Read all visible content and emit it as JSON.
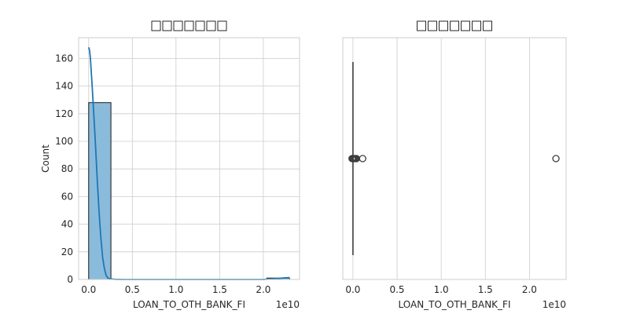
{
  "chart_data": [
    {
      "type": "histogram",
      "title": "",
      "title_glyph_count": 7,
      "xlabel": "LOAN_TO_OTH_BANK_FI",
      "ylabel": "Count",
      "x_offset_text": "1e10",
      "xlim": [
        -0.115,
        2.415
      ],
      "ylim": [
        0,
        175
      ],
      "xticks": [
        0.0,
        0.5,
        1.0,
        1.5,
        2.0
      ],
      "xtick_labels": [
        "0.0",
        "0.5",
        "1.0",
        "1.5",
        "2.0"
      ],
      "yticks": [
        0,
        20,
        40,
        60,
        80,
        100,
        120,
        140,
        160
      ],
      "ytick_labels": [
        "0",
        "20",
        "40",
        "60",
        "80",
        "100",
        "120",
        "140",
        "160"
      ],
      "bins": [
        {
          "x0": 0.0,
          "x1": 0.255,
          "count": 128
        },
        {
          "x0": 0.255,
          "x1": 0.51,
          "count": 0
        },
        {
          "x0": 0.51,
          "x1": 0.765,
          "count": 0
        },
        {
          "x0": 0.765,
          "x1": 1.02,
          "count": 0
        },
        {
          "x0": 1.02,
          "x1": 1.275,
          "count": 0
        },
        {
          "x0": 1.275,
          "x1": 1.53,
          "count": 0
        },
        {
          "x0": 1.53,
          "x1": 1.785,
          "count": 0
        },
        {
          "x0": 1.785,
          "x1": 2.04,
          "count": 0
        },
        {
          "x0": 2.04,
          "x1": 2.3,
          "count": 1
        }
      ],
      "kde": {
        "x": [
          0.0,
          0.01,
          0.02,
          0.04,
          0.06,
          0.08,
          0.1,
          0.12,
          0.14,
          0.16,
          0.18,
          0.2,
          0.22,
          0.25,
          0.3,
          0.4,
          0.6,
          1.0,
          1.5,
          2.0,
          2.15,
          2.25,
          2.3
        ],
        "y": [
          168,
          166,
          160,
          140,
          118,
          95,
          70,
          48,
          30,
          16,
          8,
          3,
          1,
          0.4,
          0.1,
          0,
          0,
          0,
          0,
          0,
          0.6,
          1.2,
          1.3
        ]
      },
      "grid": true,
      "colors": {
        "bar_fill": "#8bbbdb",
        "bar_edge": "#1a1a1a",
        "kde": "#1f77b4"
      }
    },
    {
      "type": "boxplot",
      "title": "",
      "title_glyph_count": 7,
      "xlabel": "LOAN_TO_OTH_BANK_FI",
      "x_offset_text": "1e10",
      "xlim": [
        -0.115,
        2.415
      ],
      "xticks": [
        0.0,
        0.5,
        1.0,
        1.5,
        2.0
      ],
      "xtick_labels": [
        "0.0",
        "0.5",
        "1.0",
        "1.5",
        "2.0"
      ],
      "box": {
        "q1": 0.0,
        "median": 0.0,
        "q3": 0.0,
        "whisker_low": 0.0,
        "whisker_high": 0.0
      },
      "outliers": [
        -0.01,
        0.0,
        0.01,
        0.02,
        0.03,
        0.04,
        0.11,
        2.3
      ],
      "grid": true,
      "colors": {
        "line": "#3d3d3d",
        "flier_edge": "#3d3d3d"
      }
    }
  ]
}
